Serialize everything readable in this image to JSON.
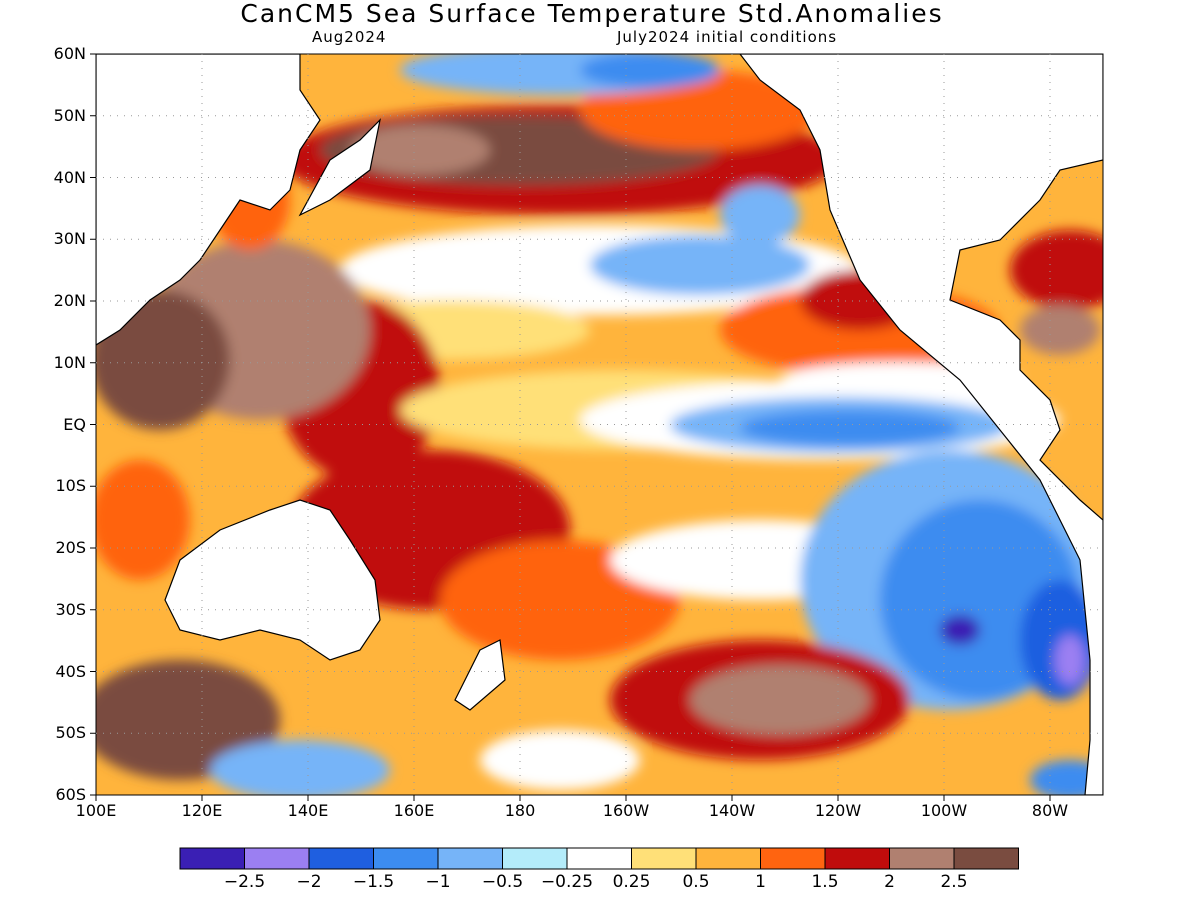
{
  "title": "CanCM5 Sea Surface Temperature Std.Anomalies",
  "subtitle_left": "Aug2024",
  "subtitle_right": "July2024 initial conditions",
  "lat_labels": [
    "60N",
    "50N",
    "40N",
    "30N",
    "20N",
    "10N",
    "EQ",
    "10S",
    "20S",
    "30S",
    "40S",
    "50S",
    "60S"
  ],
  "lon_labels": [
    "100E",
    "120E",
    "140E",
    "160E",
    "180",
    "160W",
    "140W",
    "120W",
    "100W",
    "80W"
  ],
  "colorbar": {
    "bins": [
      "#3a1fb4",
      "#9b7ff2",
      "#1f5fe0",
      "#3c8cf0",
      "#76b4f8",
      "#b4ecfa",
      "#ffffff",
      "#ffe078",
      "#ffb43c",
      "#ff6410",
      "#c00c0c",
      "#b08070",
      "#7a4c40"
    ],
    "labels": [
      "-2.5",
      "-2",
      "-1.5",
      "-1",
      "-0.5",
      "-0.25",
      "0.25",
      "0.5",
      "1",
      "1.5",
      "2",
      "2.5"
    ]
  },
  "map": {
    "extent": {
      "lon_min": 100,
      "lon_max": 290,
      "lat_min": -60,
      "lat_max": 60
    },
    "colors": {
      "land": "#ffffff",
      "coast": "#000000",
      "grid": "#999999"
    }
  }
}
